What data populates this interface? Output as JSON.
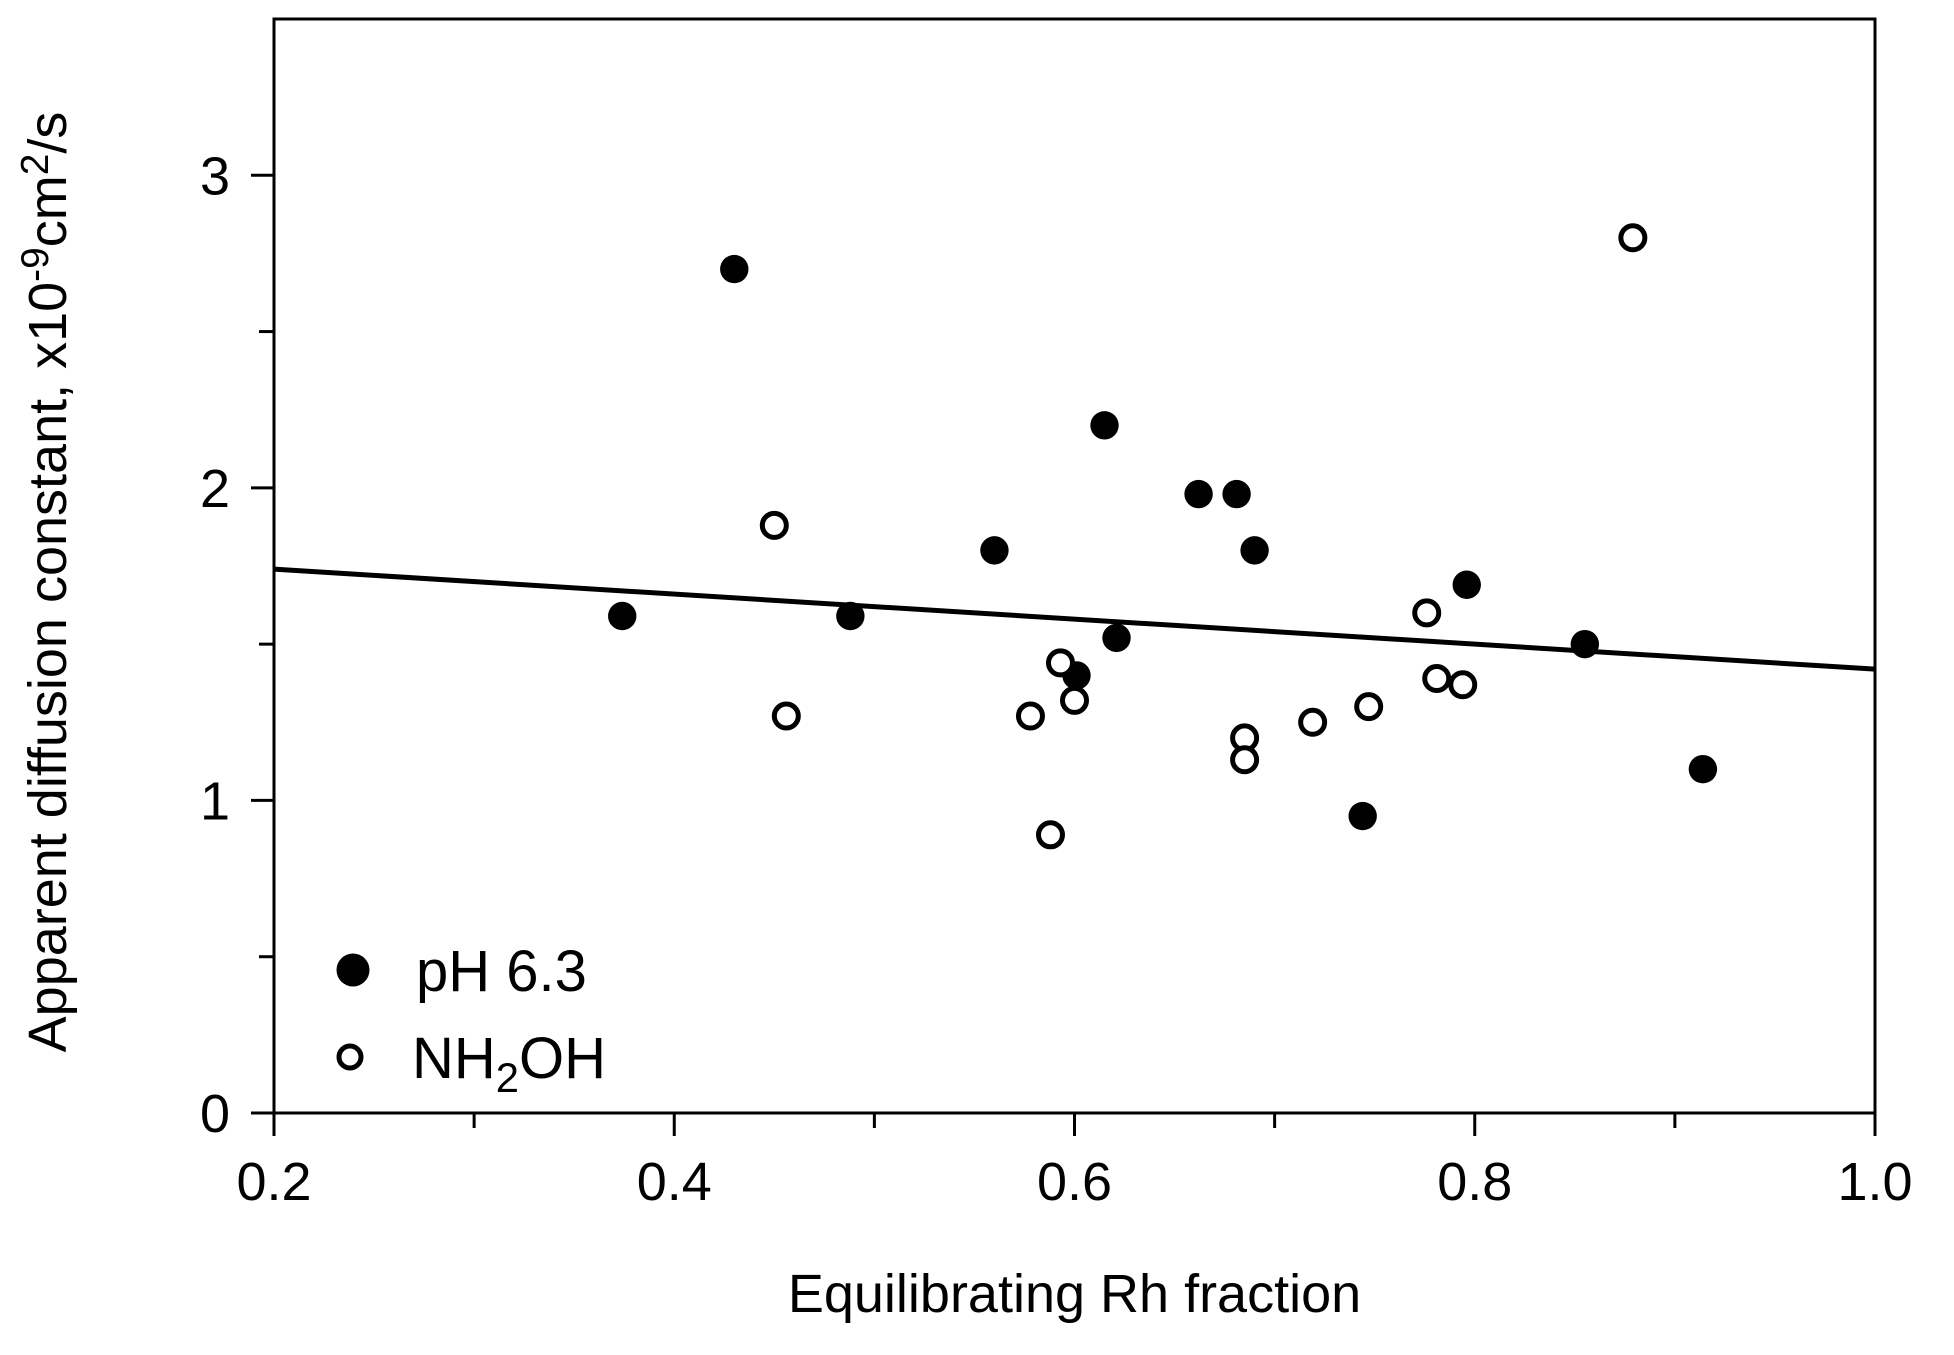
{
  "chart_data": {
    "type": "scatter",
    "title": "",
    "xlabel": "Equilibrating Rh fraction",
    "ylabel_parts": [
      {
        "t": "Apparent diffusion constant, x10"
      },
      {
        "t": "-9",
        "sup": true
      },
      {
        "t": "cm"
      },
      {
        "t": "2",
        "sup": true
      },
      {
        "t": "/s"
      }
    ],
    "xlim": [
      0.2,
      1.0
    ],
    "ylim": [
      0,
      3.5
    ],
    "x_major_ticks": [
      0.2,
      0.4,
      0.6,
      0.8,
      1.0
    ],
    "x_major_labels": [
      "0.2",
      "0.4",
      "0.6",
      "0.8",
      "1.0"
    ],
    "x_minor_ticks": [
      0.3,
      0.5,
      0.7,
      0.9
    ],
    "y_major_ticks": [
      0,
      1,
      2,
      3
    ],
    "y_major_labels": [
      "0",
      "1",
      "2",
      "3"
    ],
    "y_minor_ticks": [
      0.5,
      1.5,
      2.5
    ],
    "grid": false,
    "axis_color": "#000000",
    "marker_color": "#000000",
    "legend_position": "inside-bottom-left",
    "series": [
      {
        "name": "pH 6.3",
        "name_parts": [
          {
            "t": "pH 6.3"
          }
        ],
        "marker": "filled-circle",
        "points": [
          [
            0.374,
            1.59
          ],
          [
            0.43,
            2.7
          ],
          [
            0.488,
            1.59
          ],
          [
            0.56,
            1.8
          ],
          [
            0.601,
            1.4
          ],
          [
            0.615,
            2.2
          ],
          [
            0.621,
            1.52
          ],
          [
            0.662,
            1.98
          ],
          [
            0.681,
            1.98
          ],
          [
            0.69,
            1.8
          ],
          [
            0.744,
            0.95
          ],
          [
            0.796,
            1.69
          ],
          [
            0.855,
            1.5
          ],
          [
            0.914,
            1.1
          ]
        ]
      },
      {
        "name": "NH2OH",
        "name_parts": [
          {
            "t": "NH"
          },
          {
            "t": "2",
            "sub": true
          },
          {
            "t": "OH"
          }
        ],
        "marker": "open-circle",
        "points": [
          [
            0.45,
            1.88
          ],
          [
            0.456,
            1.27
          ],
          [
            0.578,
            1.27
          ],
          [
            0.588,
            0.89
          ],
          [
            0.593,
            1.44
          ],
          [
            0.6,
            1.32
          ],
          [
            0.685,
            1.2
          ],
          [
            0.685,
            1.13
          ],
          [
            0.719,
            1.25
          ],
          [
            0.747,
            1.3
          ],
          [
            0.776,
            1.6
          ],
          [
            0.781,
            1.39
          ],
          [
            0.794,
            1.37
          ],
          [
            0.879,
            2.8
          ]
        ]
      }
    ],
    "trend_line": {
      "x1": 0.2,
      "y1": 1.74,
      "x2": 1.0,
      "y2": 1.42
    }
  }
}
